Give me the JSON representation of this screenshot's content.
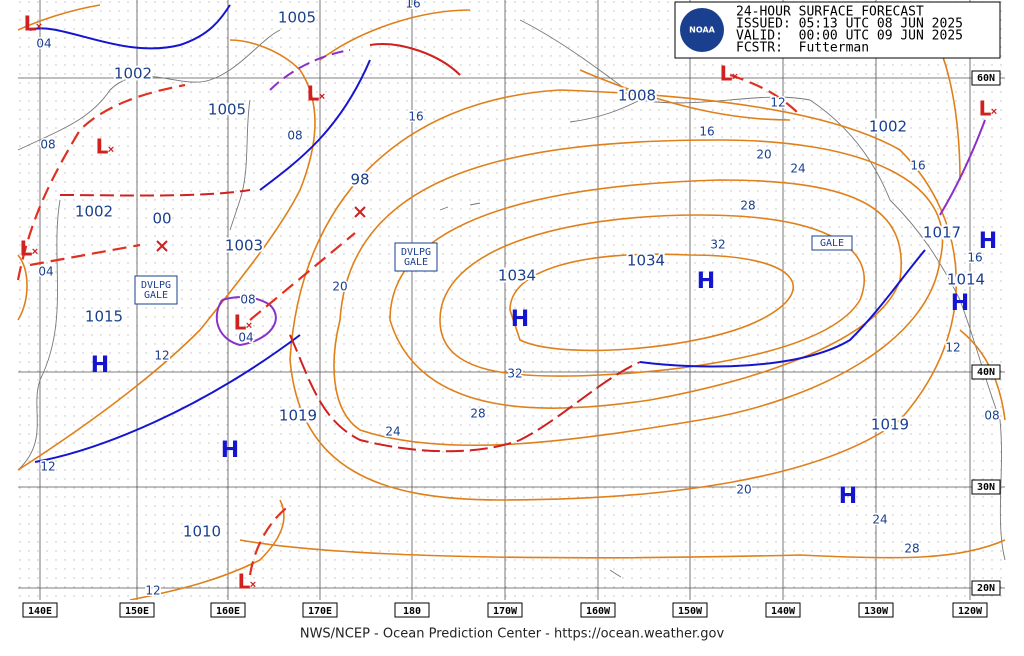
{
  "header": {
    "logo": "NOAA",
    "lines": [
      "24-HOUR SURFACE FORECAST",
      "ISSUED: 05:13 UTC 08 JUN 2025",
      "VALID:  00:00 UTC 09 JUN 2025",
      "FCSTR:  Futterman"
    ]
  },
  "longitudes": [
    "140E",
    "150E",
    "160E",
    "170E",
    "180",
    "170W",
    "160W",
    "150W",
    "140W",
    "130W",
    "120W"
  ],
  "latitudes": [
    "60N",
    "40N",
    "30N",
    "20N"
  ],
  "pressures": [
    "1005",
    "1002",
    "1005",
    "1002",
    "00",
    "1003",
    "1015",
    "98",
    "1034",
    "1034",
    "1008",
    "1002",
    "1017",
    "1014",
    "1019",
    "1019",
    "1010"
  ],
  "isobar_labels": [
    "04",
    "08",
    "12",
    "16",
    "08",
    "20",
    "24",
    "28",
    "32",
    "32",
    "28",
    "24",
    "20",
    "16",
    "12",
    "16",
    "20",
    "24",
    "28",
    "16",
    "12",
    "12",
    "08",
    "04",
    "08",
    "04",
    "16",
    "12"
  ],
  "symbols": {
    "high": "H",
    "low": "L"
  },
  "gale_labels": [
    "DVLPG GALE",
    "DVLPG GALE",
    "GALE"
  ],
  "footer": "NWS/NCEP - Ocean Prediction Center - https://ocean.weather.gov"
}
